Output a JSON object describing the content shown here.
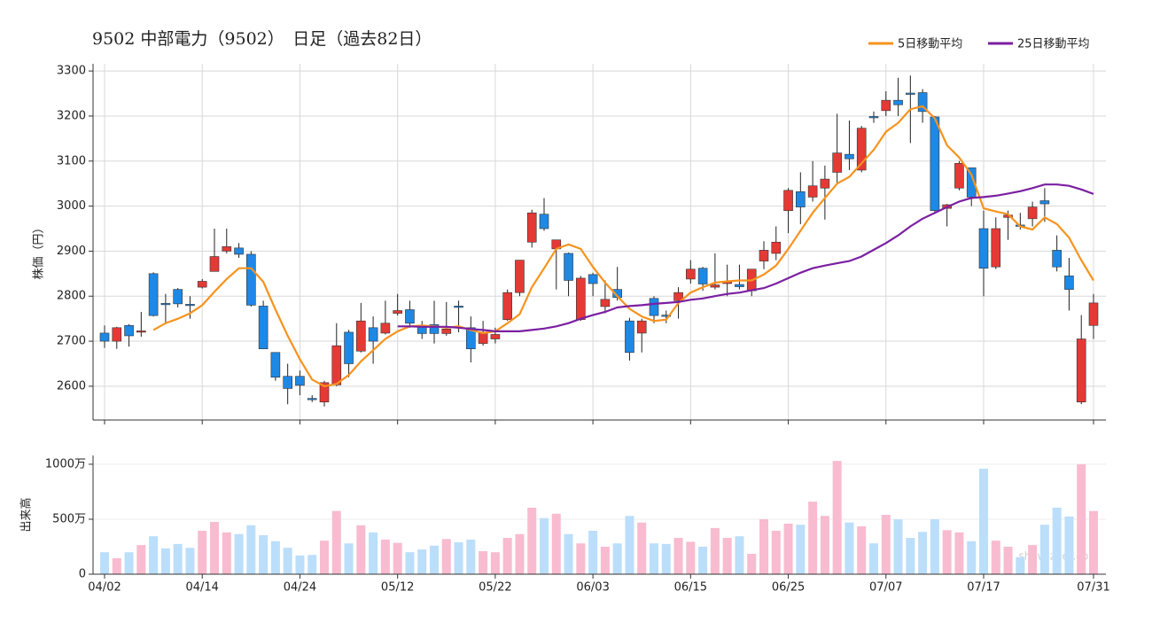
{
  "chart_data": [
    {
      "type": "candlestick",
      "title": "9502 中部電力（9502）　日足（過去82日）",
      "ylabel": "株価（円）",
      "categories": [
        "04/02",
        null,
        null,
        null,
        null,
        null,
        null,
        null,
        "04/14",
        null,
        null,
        null,
        null,
        null,
        null,
        null,
        "04/24",
        null,
        null,
        null,
        null,
        null,
        null,
        null,
        "05/12",
        null,
        null,
        null,
        null,
        null,
        null,
        null,
        "05/22",
        null,
        null,
        null,
        null,
        null,
        null,
        null,
        "06/03",
        null,
        null,
        null,
        null,
        null,
        null,
        null,
        "06/15",
        null,
        null,
        null,
        null,
        null,
        null,
        null,
        "06/25",
        null,
        null,
        null,
        null,
        null,
        null,
        null,
        "07/07",
        null,
        null,
        null,
        null,
        null,
        null,
        null,
        "07/17",
        null,
        null,
        null,
        null,
        null,
        null,
        null,
        null,
        "07/31"
      ],
      "open": [
        2718,
        2700,
        2735,
        2720,
        2850,
        2784,
        2815,
        2782,
        2820,
        2855,
        2900,
        2907,
        2893,
        2778,
        2675,
        2622,
        2622,
        2573,
        2565,
        2603,
        2720,
        2678,
        2730,
        2718,
        2762,
        2770,
        2735,
        2737,
        2717,
        2778,
        2730,
        2695,
        2705,
        2748,
        2808,
        2920,
        2982,
        2905,
        2895,
        2748,
        2848,
        2777,
        2815,
        2745,
        2718,
        2795,
        2758,
        2790,
        2838,
        2862,
        2820,
        2828,
        2826,
        2812,
        2878,
        2895,
        2990,
        3032,
        3020,
        3040,
        3075,
        3115,
        3080,
        3199,
        3212,
        3235,
        3251,
        3252,
        3198,
        2995,
        3040,
        3085,
        2950,
        2865,
        2975,
        2958,
        2972,
        3012,
        2902,
        2845,
        2565,
        2735
      ],
      "high": [
        2735,
        2732,
        2738,
        2765,
        2853,
        2805,
        2818,
        2800,
        2838,
        2950,
        2950,
        2918,
        2900,
        2790,
        2675,
        2650,
        2635,
        2580,
        2612,
        2740,
        2725,
        2785,
        2755,
        2790,
        2805,
        2790,
        2745,
        2790,
        2787,
        2790,
        2755,
        2745,
        2730,
        2815,
        2880,
        2992,
        3018,
        2925,
        2897,
        2845,
        2852,
        2835,
        2865,
        2752,
        2750,
        2800,
        2768,
        2820,
        2880,
        2865,
        2895,
        2870,
        2870,
        2860,
        2922,
        2955,
        3040,
        3075,
        3100,
        3090,
        3205,
        3190,
        3178,
        3210,
        3255,
        3285,
        3290,
        3260,
        3200,
        3005,
        3100,
        3085,
        2990,
        2975,
        2990,
        2985,
        3010,
        3040,
        2935,
        2885,
        2758,
        2805
      ],
      "low": [
        2685,
        2683,
        2688,
        2710,
        2755,
        2740,
        2775,
        2750,
        2817,
        2855,
        2895,
        2885,
        2777,
        2683,
        2612,
        2560,
        2580,
        2565,
        2555,
        2600,
        2620,
        2675,
        2650,
        2715,
        2757,
        2730,
        2705,
        2695,
        2712,
        2720,
        2653,
        2690,
        2695,
        2745,
        2800,
        2908,
        2945,
        2815,
        2800,
        2745,
        2800,
        2762,
        2790,
        2657,
        2675,
        2740,
        2740,
        2750,
        2828,
        2812,
        2815,
        2800,
        2815,
        2800,
        2860,
        2880,
        2940,
        2960,
        3010,
        2970,
        3050,
        3080,
        3075,
        3185,
        3200,
        3200,
        3140,
        3185,
        2985,
        2955,
        3035,
        3000,
        2800,
        2860,
        2925,
        2948,
        2955,
        2965,
        2855,
        2768,
        2560,
        2705
      ],
      "close": [
        2700,
        2730,
        2712,
        2723,
        2757,
        2782,
        2783,
        2781,
        2833,
        2888,
        2910,
        2893,
        2780,
        2683,
        2620,
        2595,
        2602,
        2571,
        2608,
        2690,
        2650,
        2745,
        2700,
        2740,
        2768,
        2740,
        2717,
        2717,
        2727,
        2776,
        2683,
        2720,
        2715,
        2808,
        2880,
        2985,
        2950,
        2925,
        2835,
        2840,
        2828,
        2793,
        2797,
        2675,
        2745,
        2757,
        2757,
        2808,
        2860,
        2827,
        2825,
        2833,
        2821,
        2860,
        2902,
        2920,
        3035,
        2998,
        3045,
        3060,
        3118,
        3105,
        3173,
        3197,
        3235,
        3225,
        3249,
        3210,
        2990,
        3003,
        3095,
        3020,
        2862,
        2950,
        2980,
        2956,
        2998,
        3005,
        2865,
        2815,
        2705,
        2785
      ],
      "up_color": "#e53935",
      "down_color": "#1e88e5",
      "series": [
        {
          "name": "5日移動平均",
          "color": "#f7931e",
          "values": [
            null,
            null,
            null,
            null,
            2725,
            2740,
            2750,
            2762,
            2780,
            2810,
            2838,
            2862,
            2862,
            2832,
            2770,
            2712,
            2660,
            2615,
            2600,
            2605,
            2625,
            2655,
            2680,
            2705,
            2722,
            2733,
            2735,
            2733,
            2730,
            2733,
            2725,
            2718,
            2722,
            2740,
            2760,
            2820,
            2862,
            2905,
            2915,
            2905,
            2865,
            2830,
            2800,
            2772,
            2755,
            2745,
            2748,
            2785,
            2808,
            2820,
            2830,
            2833,
            2835,
            2835,
            2848,
            2868,
            2905,
            2945,
            2985,
            3018,
            3050,
            3065,
            3095,
            3125,
            3165,
            3185,
            3215,
            3222,
            3195,
            3135,
            3108,
            3070,
            2995,
            2988,
            2982,
            2955,
            2948,
            2975,
            2960,
            2930,
            2880,
            2835
          ]
        },
        {
          "name": "25日移動平均",
          "color": "#7b1fa2",
          "values": [
            null,
            null,
            null,
            null,
            null,
            null,
            null,
            null,
            null,
            null,
            null,
            null,
            null,
            null,
            null,
            null,
            null,
            null,
            null,
            null,
            null,
            null,
            null,
            null,
            2733,
            2733,
            2732,
            2732,
            2732,
            2730,
            2727,
            2725,
            2722,
            2722,
            2722,
            2725,
            2728,
            2733,
            2740,
            2750,
            2758,
            2765,
            2775,
            2778,
            2780,
            2783,
            2785,
            2787,
            2792,
            2795,
            2800,
            2805,
            2808,
            2813,
            2818,
            2828,
            2840,
            2852,
            2862,
            2868,
            2873,
            2878,
            2888,
            2903,
            2918,
            2935,
            2955,
            2972,
            2985,
            2998,
            3010,
            3018,
            3020,
            3023,
            3028,
            3033,
            3040,
            3048,
            3048,
            3045,
            3037,
            3027
          ]
        }
      ],
      "ylim": [
        2525,
        3316
      ],
      "yticks": [
        2600,
        2700,
        2800,
        2900,
        3000,
        3100,
        3200,
        3300
      ],
      "grid": true,
      "legend": "top-right"
    },
    {
      "type": "bar",
      "ylabel": "出来高",
      "up_color": "#f8bbd0",
      "down_color": "#bbdefb",
      "values": [
        200,
        145,
        200,
        265,
        345,
        235,
        275,
        240,
        395,
        475,
        380,
        365,
        445,
        355,
        300,
        240,
        170,
        175,
        305,
        575,
        280,
        445,
        380,
        315,
        285,
        200,
        225,
        260,
        320,
        290,
        315,
        210,
        200,
        330,
        365,
        605,
        510,
        550,
        365,
        280,
        395,
        250,
        280,
        530,
        470,
        280,
        275,
        330,
        295,
        250,
        420,
        330,
        345,
        185,
        500,
        395,
        460,
        450,
        660,
        530,
        1030,
        470,
        435,
        280,
        540,
        500,
        330,
        385,
        500,
        400,
        380,
        300,
        960,
        305,
        250,
        155,
        265,
        450,
        605,
        525,
        1000,
        575
      ],
      "ylim": [
        0,
        1080
      ],
      "yticks": [
        0,
        {
          "value": 500,
          "label": "500万"
        },
        {
          "value": 1000,
          "label": "1000万"
        }
      ],
      "grid": true,
      "watermark": "show-zeet.com"
    }
  ]
}
